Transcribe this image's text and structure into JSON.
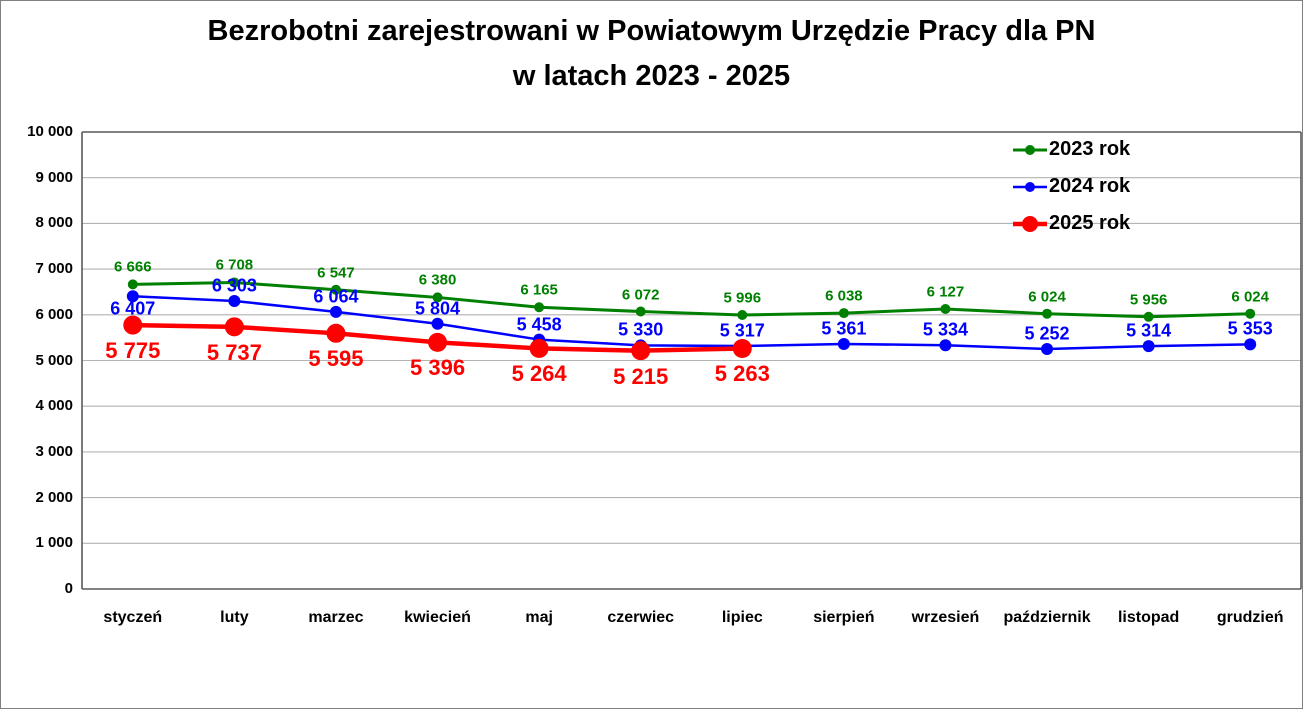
{
  "title": {
    "line1": "Bezrobotni zarejestrowani w Powiatowym Urzędzie Pracy dla PN",
    "line2": "w latach 2023 - 2025"
  },
  "chart_data": {
    "type": "line",
    "categories": [
      "styczeń",
      "luty",
      "marzec",
      "kwiecień",
      "maj",
      "czerwiec",
      "lipiec",
      "sierpień",
      "wrzesień",
      "październik",
      "listopad",
      "grudzień"
    ],
    "series": [
      {
        "name": "2023 rok",
        "color": "#008000",
        "values": [
          6666,
          6708,
          6547,
          6380,
          6165,
          6072,
          5996,
          6038,
          6127,
          6024,
          5956,
          6024
        ]
      },
      {
        "name": "2024 rok",
        "color": "#0000FF",
        "values": [
          6407,
          6303,
          6064,
          5804,
          5458,
          5330,
          5317,
          5361,
          5334,
          5252,
          5314,
          5353
        ]
      },
      {
        "name": "2025 rok",
        "color": "#FF0000",
        "values": [
          5775,
          5737,
          5595,
          5396,
          5264,
          5215,
          5263
        ]
      }
    ],
    "ylim": [
      0,
      10000
    ],
    "ytick_step": 1000,
    "grid": "horizontal",
    "gridline_color": "#b3b3b3",
    "axis_color": "#595959",
    "legend_position": "top-right",
    "data_labels": true,
    "xlabel": "",
    "ylabel": ""
  }
}
